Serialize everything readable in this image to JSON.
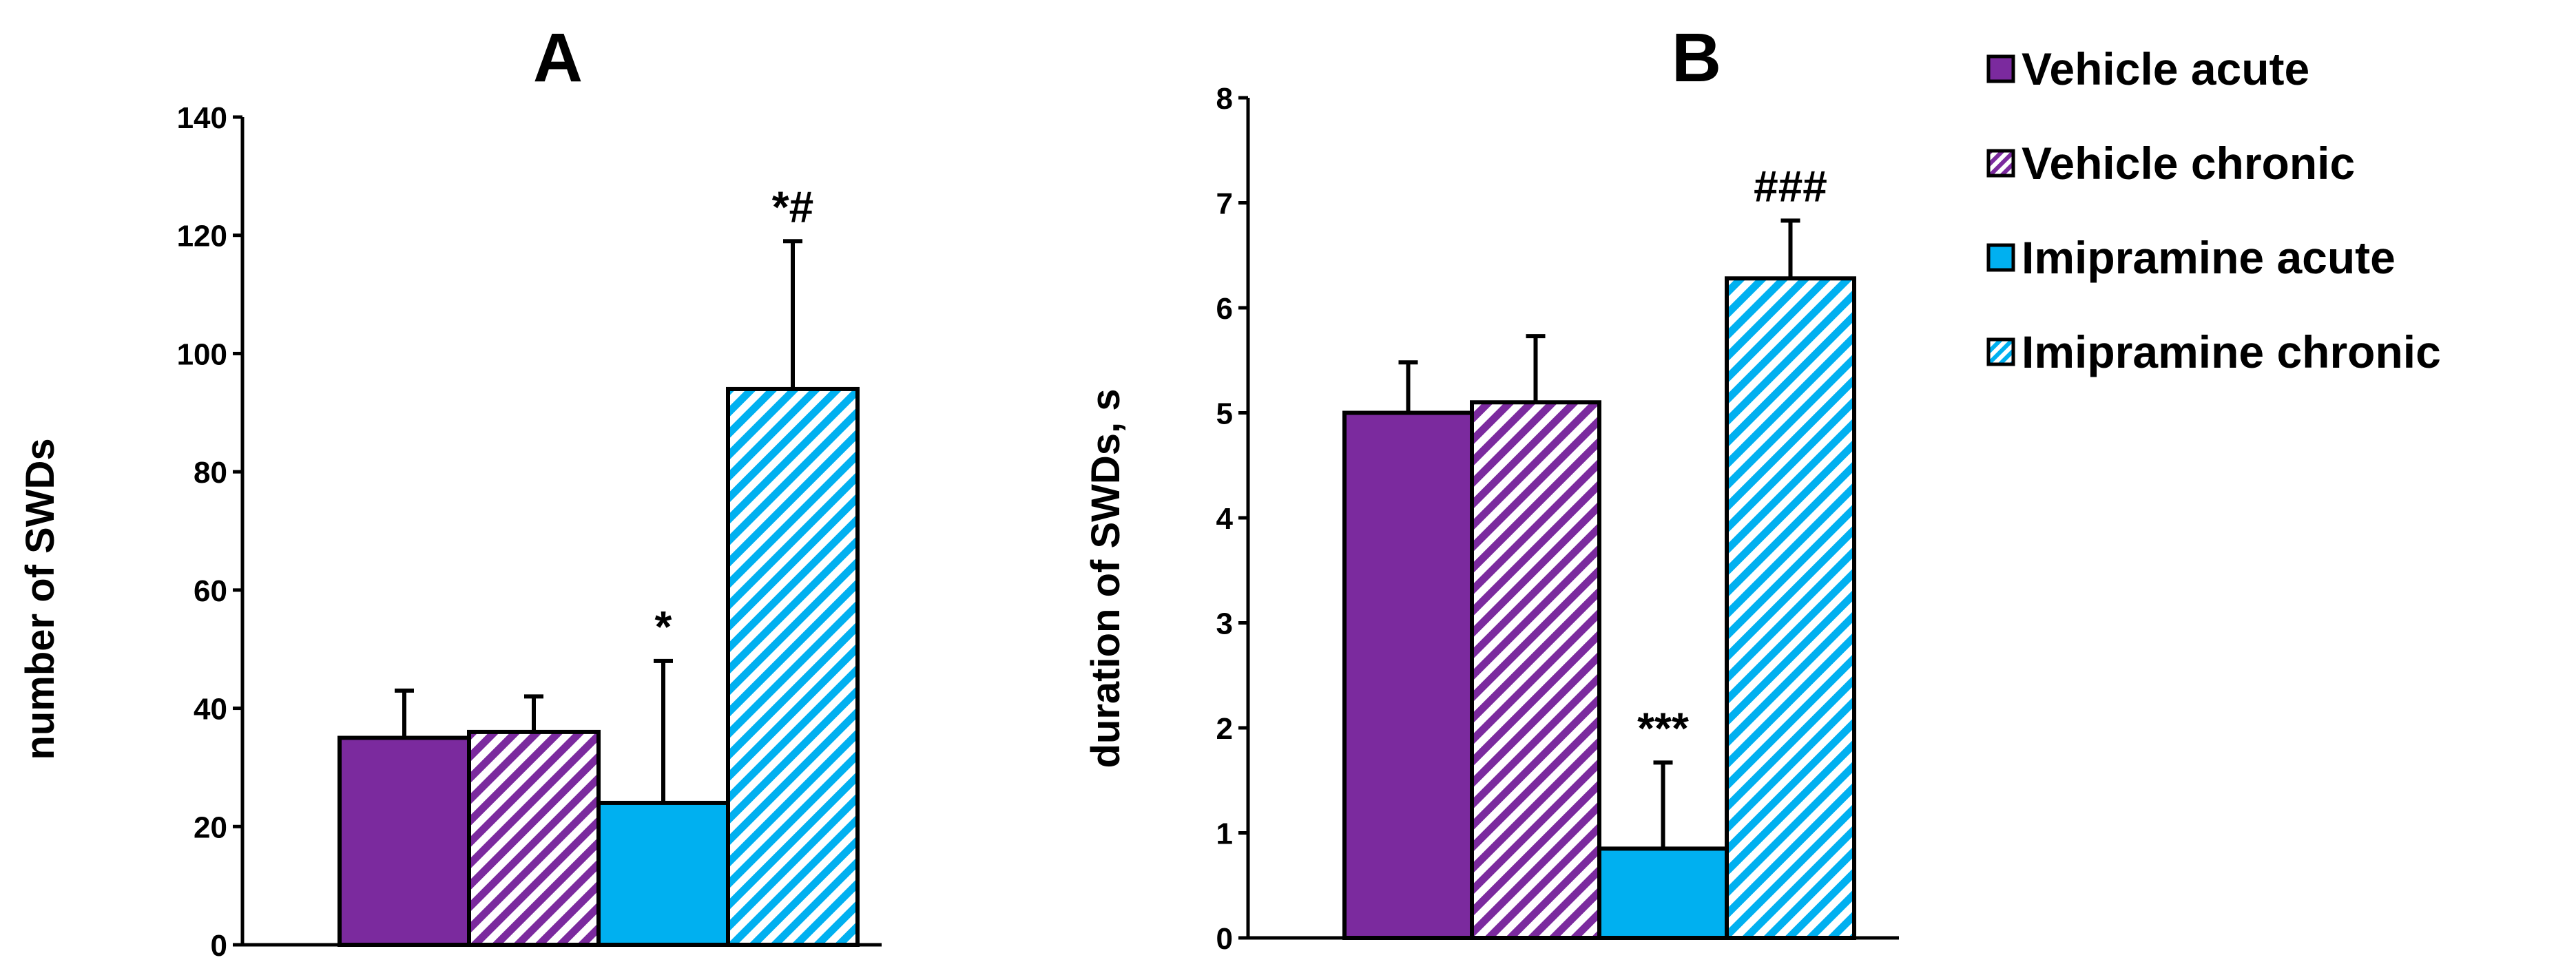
{
  "legend": {
    "entries": [
      {
        "label": "Vehicle acute",
        "color": "#7b2a9e",
        "pattern": "solid"
      },
      {
        "label": "Vehicle chronic",
        "color": "#7b2a9e",
        "pattern": "hatched"
      },
      {
        "label": "Imipramine acute",
        "color": "#00b0f0",
        "pattern": "solid"
      },
      {
        "label": "Imipramine chronic",
        "color": "#00b0f0",
        "pattern": "hatched"
      }
    ]
  },
  "chart_data": [
    {
      "type": "bar",
      "title": "A",
      "xlabel": "",
      "ylabel": "number of SWDs",
      "ylim": [
        0,
        140
      ],
      "yticks": [
        0,
        20,
        40,
        60,
        80,
        100,
        120,
        140
      ],
      "categories": [
        "Vehicle acute",
        "Vehicle chronic",
        "Imipramine acute",
        "Imipramine chronic"
      ],
      "values": [
        35,
        36,
        24,
        94
      ],
      "errors": [
        8,
        6,
        24,
        25
      ],
      "annotations": [
        "",
        "",
        "*",
        "*#"
      ]
    },
    {
      "type": "bar",
      "title": "B",
      "xlabel": "",
      "ylabel": "duration of SWDs, s",
      "ylim": [
        0,
        8
      ],
      "yticks": [
        0,
        1,
        2,
        3,
        4,
        5,
        6,
        7,
        8
      ],
      "categories": [
        "Vehicle acute",
        "Vehicle chronic",
        "Imipramine acute",
        "Imipramine chronic"
      ],
      "values": [
        5.0,
        5.1,
        0.85,
        6.28
      ],
      "errors": [
        0.48,
        0.63,
        0.82,
        0.55
      ],
      "annotations": [
        "",
        "",
        "***",
        "###"
      ]
    }
  ]
}
